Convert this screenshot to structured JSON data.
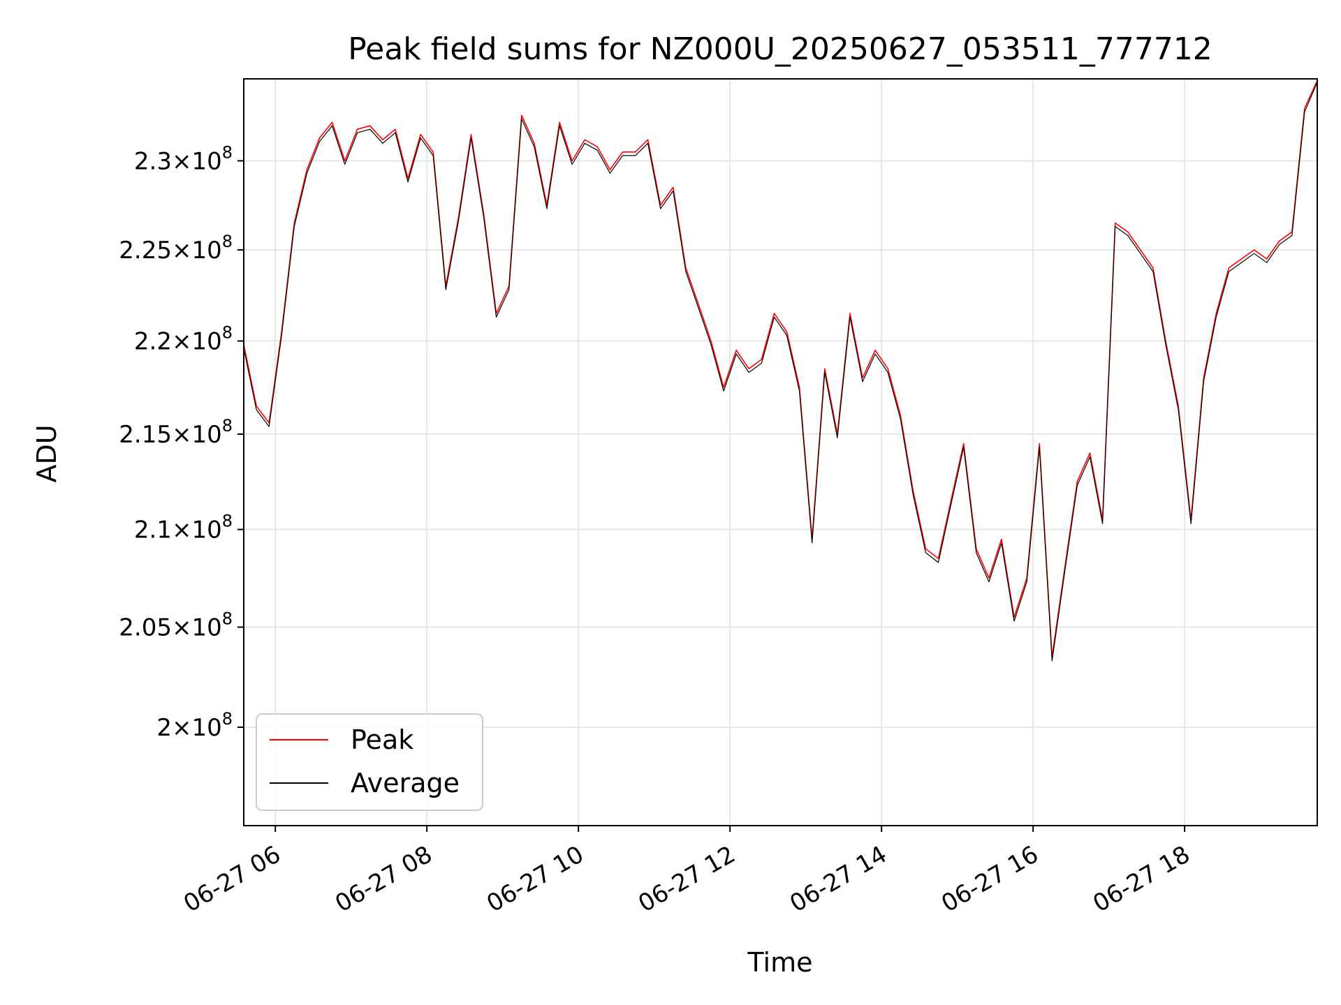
{
  "chart_data": {
    "type": "line",
    "title": "Peak field sums for NZ000U_20250627_053511_777712",
    "xlabel": "Time",
    "ylabel": "ADU",
    "x_ticks": [
      "06-27 06",
      "06-27 08",
      "06-27 10",
      "06-27 12",
      "06-27 14",
      "06-27 16",
      "06-27 18"
    ],
    "y_ticks": [
      {
        "value": 200000000,
        "mantissa": "2",
        "exponent": "8"
      },
      {
        "value": 205000000,
        "mantissa": "2.05",
        "exponent": "8"
      },
      {
        "value": 210000000,
        "mantissa": "2.1",
        "exponent": "8"
      },
      {
        "value": 215000000,
        "mantissa": "2.15",
        "exponent": "8"
      },
      {
        "value": 220000000,
        "mantissa": "2.2",
        "exponent": "8"
      },
      {
        "value": 225000000,
        "mantissa": "2.25",
        "exponent": "8"
      },
      {
        "value": 230000000,
        "mantissa": "2.3",
        "exponent": "8"
      }
    ],
    "times_per_sample_note_hidden": "",
    "xlim": [
      "2025-06-27T05:35",
      "2025-06-27T19:45"
    ],
    "ylim": [
      195200000,
      234700000
    ],
    "y_scale": "log",
    "grid": true,
    "legend_position": "lower-left",
    "series": [
      {
        "name": "Peak",
        "color": "#ff0000",
        "x": [
          "2025-06-27T05:35",
          "2025-06-27T05:45",
          "2025-06-27T05:55",
          "2025-06-27T06:05",
          "2025-06-27T06:15",
          "2025-06-27T06:25",
          "2025-06-27T06:35",
          "2025-06-27T06:45",
          "2025-06-27T06:55",
          "2025-06-27T07:05",
          "2025-06-27T07:15",
          "2025-06-27T07:25",
          "2025-06-27T07:35",
          "2025-06-27T07:45",
          "2025-06-27T07:55",
          "2025-06-27T08:05",
          "2025-06-27T08:15",
          "2025-06-27T08:25",
          "2025-06-27T08:35",
          "2025-06-27T08:45",
          "2025-06-27T08:55",
          "2025-06-27T09:05",
          "2025-06-27T09:15",
          "2025-06-27T09:25",
          "2025-06-27T09:35",
          "2025-06-27T09:45",
          "2025-06-27T09:55",
          "2025-06-27T10:05",
          "2025-06-27T10:15",
          "2025-06-27T10:25",
          "2025-06-27T10:35",
          "2025-06-27T10:45",
          "2025-06-27T10:55",
          "2025-06-27T11:05",
          "2025-06-27T11:15",
          "2025-06-27T11:25",
          "2025-06-27T11:35",
          "2025-06-27T11:45",
          "2025-06-27T11:55",
          "2025-06-27T12:05",
          "2025-06-27T12:15",
          "2025-06-27T12:25",
          "2025-06-27T12:35",
          "2025-06-27T12:45",
          "2025-06-27T12:55",
          "2025-06-27T13:05",
          "2025-06-27T13:15",
          "2025-06-27T13:25",
          "2025-06-27T13:35",
          "2025-06-27T13:45",
          "2025-06-27T13:55",
          "2025-06-27T14:05",
          "2025-06-27T14:15",
          "2025-06-27T14:25",
          "2025-06-27T14:35",
          "2025-06-27T14:45",
          "2025-06-27T14:55",
          "2025-06-27T15:05",
          "2025-06-27T15:15",
          "2025-06-27T15:25",
          "2025-06-27T15:35",
          "2025-06-27T15:45",
          "2025-06-27T15:55",
          "2025-06-27T16:05",
          "2025-06-27T16:15",
          "2025-06-27T16:25",
          "2025-06-27T16:35",
          "2025-06-27T16:45",
          "2025-06-27T16:55",
          "2025-06-27T17:05",
          "2025-06-27T17:15",
          "2025-06-27T17:25",
          "2025-06-27T17:35",
          "2025-06-27T17:45",
          "2025-06-27T17:55",
          "2025-06-27T18:05",
          "2025-06-27T18:15",
          "2025-06-27T18:25",
          "2025-06-27T18:35",
          "2025-06-27T18:45",
          "2025-06-27T18:55",
          "2025-06-27T19:05",
          "2025-06-27T19:15",
          "2025-06-27T19:25",
          "2025-06-27T19:35",
          "2025-06-27T19:45"
        ],
        "values": [
          219800000,
          216500000,
          215600000,
          220500000,
          226500000,
          229500000,
          231300000,
          232200000,
          230000000,
          231800000,
          232000000,
          231200000,
          231800000,
          229000000,
          231500000,
          230500000,
          223000000,
          226800000,
          231500000,
          227000000,
          221500000,
          223000000,
          232600000,
          231000000,
          227500000,
          232200000,
          230000000,
          231200000,
          230800000,
          229500000,
          230500000,
          230500000,
          231200000,
          227500000,
          228500000,
          224000000,
          222000000,
          220000000,
          217500000,
          219500000,
          218500000,
          219000000,
          221500000,
          220500000,
          217500000,
          209500000,
          218500000,
          215000000,
          221500000,
          218000000,
          219500000,
          218500000,
          216000000,
          212000000,
          209000000,
          208500000,
          211500000,
          214500000,
          209000000,
          207500000,
          209500000,
          205500000,
          207500000,
          214500000,
          203500000,
          208000000,
          212500000,
          214000000,
          210500000,
          226500000,
          226000000,
          225000000,
          224000000,
          220000000,
          216500000,
          210500000,
          218000000,
          221500000,
          224000000,
          224500000,
          225000000,
          224500000,
          225500000,
          226000000,
          233000000,
          234600000
        ]
      },
      {
        "name": "Average",
        "color": "#000000",
        "x": [
          "2025-06-27T05:35",
          "2025-06-27T05:45",
          "2025-06-27T05:55",
          "2025-06-27T06:05",
          "2025-06-27T06:15",
          "2025-06-27T06:25",
          "2025-06-27T06:35",
          "2025-06-27T06:45",
          "2025-06-27T06:55",
          "2025-06-27T07:05",
          "2025-06-27T07:15",
          "2025-06-27T07:25",
          "2025-06-27T07:35",
          "2025-06-27T07:45",
          "2025-06-27T07:55",
          "2025-06-27T08:05",
          "2025-06-27T08:15",
          "2025-06-27T08:25",
          "2025-06-27T08:35",
          "2025-06-27T08:45",
          "2025-06-27T08:55",
          "2025-06-27T09:05",
          "2025-06-27T09:15",
          "2025-06-27T09:25",
          "2025-06-27T09:35",
          "2025-06-27T09:45",
          "2025-06-27T09:55",
          "2025-06-27T10:05",
          "2025-06-27T10:15",
          "2025-06-27T10:25",
          "2025-06-27T10:35",
          "2025-06-27T10:45",
          "2025-06-27T10:55",
          "2025-06-27T11:05",
          "2025-06-27T11:15",
          "2025-06-27T11:25",
          "2025-06-27T11:35",
          "2025-06-27T11:45",
          "2025-06-27T11:55",
          "2025-06-27T12:05",
          "2025-06-27T12:15",
          "2025-06-27T12:25",
          "2025-06-27T12:35",
          "2025-06-27T12:45",
          "2025-06-27T12:55",
          "2025-06-27T13:05",
          "2025-06-27T13:15",
          "2025-06-27T13:25",
          "2025-06-27T13:35",
          "2025-06-27T13:45",
          "2025-06-27T13:55",
          "2025-06-27T14:05",
          "2025-06-27T14:15",
          "2025-06-27T14:25",
          "2025-06-27T14:35",
          "2025-06-27T14:45",
          "2025-06-27T14:55",
          "2025-06-27T15:05",
          "2025-06-27T15:15",
          "2025-06-27T15:25",
          "2025-06-27T15:35",
          "2025-06-27T15:45",
          "2025-06-27T15:55",
          "2025-06-27T16:05",
          "2025-06-27T16:15",
          "2025-06-27T16:25",
          "2025-06-27T16:35",
          "2025-06-27T16:45",
          "2025-06-27T16:55",
          "2025-06-27T17:05",
          "2025-06-27T17:15",
          "2025-06-27T17:25",
          "2025-06-27T17:35",
          "2025-06-27T17:45",
          "2025-06-27T17:55",
          "2025-06-27T18:05",
          "2025-06-27T18:15",
          "2025-06-27T18:25",
          "2025-06-27T18:35",
          "2025-06-27T18:45",
          "2025-06-27T18:55",
          "2025-06-27T19:05",
          "2025-06-27T19:15",
          "2025-06-27T19:25",
          "2025-06-27T19:35",
          "2025-06-27T19:45"
        ],
        "values": [
          219600000,
          216300000,
          215400000,
          220300000,
          226300000,
          229300000,
          231100000,
          232000000,
          229800000,
          231600000,
          231800000,
          231000000,
          231600000,
          228800000,
          231300000,
          230300000,
          222800000,
          226600000,
          231300000,
          226800000,
          221300000,
          222800000,
          232400000,
          230800000,
          227300000,
          232000000,
          229800000,
          231000000,
          230600000,
          229300000,
          230300000,
          230300000,
          231000000,
          227300000,
          228300000,
          223800000,
          221800000,
          219800000,
          217300000,
          219300000,
          218300000,
          218800000,
          221300000,
          220300000,
          217300000,
          209300000,
          218300000,
          214800000,
          221300000,
          217800000,
          219300000,
          218300000,
          215800000,
          211800000,
          208800000,
          208300000,
          211300000,
          214300000,
          208800000,
          207300000,
          209300000,
          205300000,
          207300000,
          214300000,
          203300000,
          207800000,
          212300000,
          213800000,
          210300000,
          226300000,
          225800000,
          224800000,
          223800000,
          219800000,
          216300000,
          210300000,
          217800000,
          221300000,
          223800000,
          224300000,
          224800000,
          224300000,
          225300000,
          225800000,
          232800000,
          234500000
        ]
      }
    ]
  }
}
